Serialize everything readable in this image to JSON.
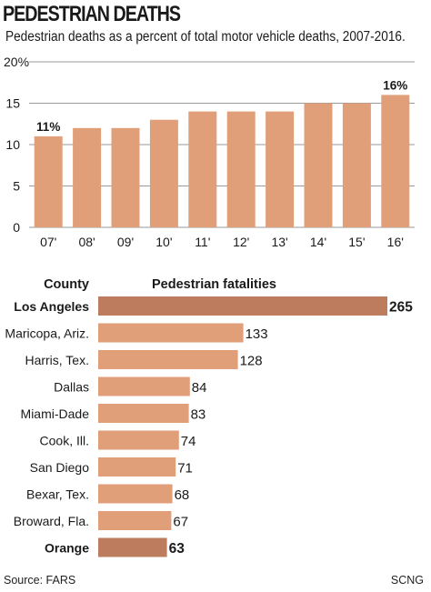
{
  "header": {
    "title": "PEDESTRIAN DEATHS",
    "subtitle": "Pedestrian deaths as a percent of total motor vehicle deaths, 2007-2016."
  },
  "colors": {
    "bar": "#e09e79",
    "highlight": "#bd7c5e",
    "grid": "#9a9a9a",
    "text": "#1a1a1a"
  },
  "chart_data": [
    {
      "type": "bar",
      "title": "PEDESTRIAN DEATHS",
      "subtitle": "Pedestrian deaths as a percent of total motor vehicle deaths, 2007-2016.",
      "categories": [
        "07'",
        "08'",
        "09'",
        "10'",
        "11'",
        "12'",
        "13'",
        "14'",
        "15'",
        "16'"
      ],
      "values": [
        11,
        12,
        12,
        13,
        14,
        14,
        14,
        15,
        15,
        16
      ],
      "data_labels": {
        "0": "11%",
        "9": "16%"
      },
      "yticks": [
        "0",
        "5",
        "10",
        "15",
        "20%"
      ],
      "ylim": [
        0,
        20
      ],
      "grid": true
    },
    {
      "type": "bar",
      "orientation": "horizontal",
      "category_header": "County",
      "value_header": "Pedestrian fatalities",
      "categories": [
        "Los Angeles",
        "Maricopa, Ariz.",
        "Harris, Tex.",
        "Dallas",
        "Miami-Dade",
        "Cook, Ill.",
        "San Diego",
        "Bexar, Tex.",
        "Broward, Fla.",
        "Orange"
      ],
      "values": [
        265,
        133,
        128,
        84,
        83,
        74,
        71,
        68,
        67,
        63
      ],
      "highlighted": [
        "Los Angeles",
        "Orange"
      ]
    }
  ],
  "footer": {
    "source": "Source: FARS",
    "credit": "SCNG"
  }
}
